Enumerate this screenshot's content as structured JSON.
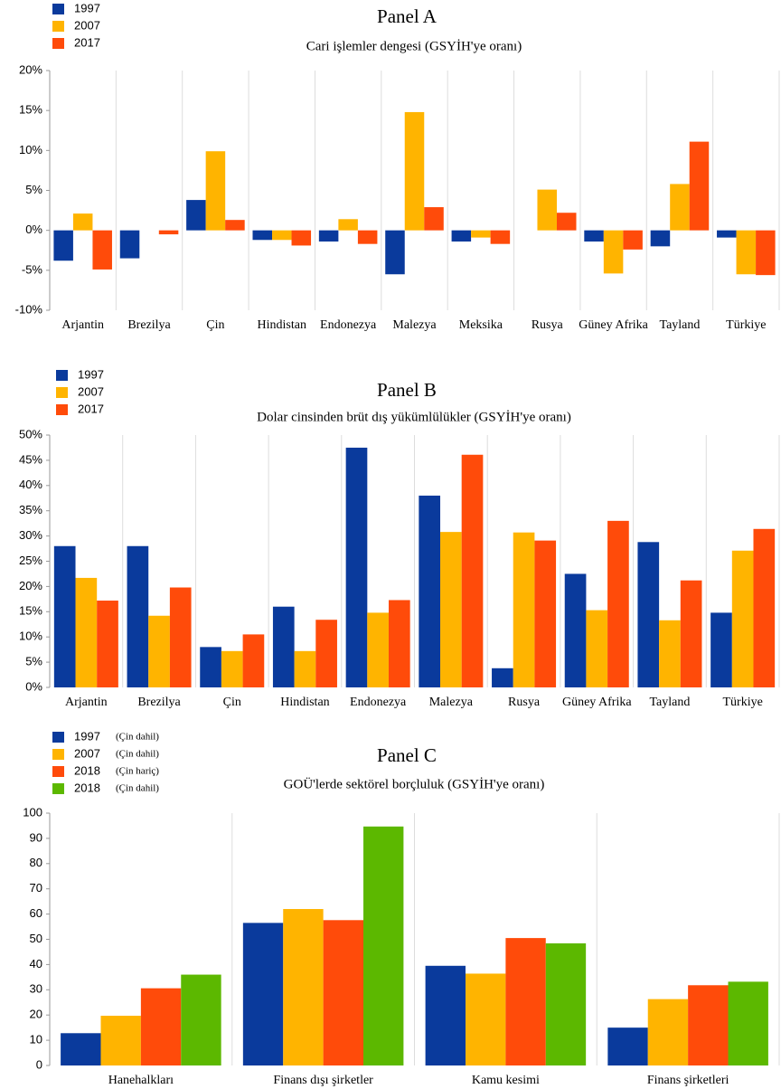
{
  "chart_data": [
    {
      "type": "bar",
      "title": "Panel A",
      "subtitle": "Cari işlemler dengesi (GSYİH'ye oranı)",
      "categories": [
        "Arjantin",
        "Brezilya",
        "Çin",
        "Hindistan",
        "Endonezya",
        "Malezya",
        "Meksika",
        "Rusya",
        "Güney Afrika",
        "Tayland",
        "Türkiye"
      ],
      "series": [
        {
          "name": "1997",
          "color": "#0a3a9c",
          "values": [
            -3.8,
            -3.5,
            3.8,
            -1.2,
            -1.4,
            -5.5,
            -1.4,
            0,
            -1.4,
            -2.0,
            -0.9
          ]
        },
        {
          "name": "2007",
          "color": "#ffb400",
          "values": [
            2.1,
            0,
            9.9,
            -1.2,
            1.4,
            14.8,
            -0.9,
            5.1,
            -5.4,
            5.8,
            -5.5
          ]
        },
        {
          "name": "2017",
          "color": "#ff4b0a",
          "values": [
            -4.9,
            -0.5,
            1.3,
            -1.9,
            -1.7,
            2.9,
            -1.7,
            2.2,
            -2.4,
            11.1,
            -5.6
          ]
        }
      ],
      "ylim": [
        -10,
        20
      ],
      "yticks": [
        {
          "value": -10,
          "label": "-10%"
        },
        {
          "value": -5,
          "label": "-5%"
        },
        {
          "value": 0,
          "label": "0%"
        },
        {
          "value": 5,
          "label": "5%"
        },
        {
          "value": 10,
          "label": "10%"
        },
        {
          "value": 15,
          "label": "15%"
        },
        {
          "value": 20,
          "label": "20%"
        }
      ],
      "legend": "top-left"
    },
    {
      "type": "bar",
      "title": "Panel B",
      "subtitle": "Dolar cinsinden brüt dış yükümlülükler (GSYİH'ye oranı)",
      "categories": [
        "Arjantin",
        "Brezilya",
        "Çin",
        "Hindistan",
        "Endonezya",
        "Malezya",
        "Rusya",
        "Güney Afrika",
        "Tayland",
        "Türkiye"
      ],
      "series": [
        {
          "name": "1997",
          "color": "#0a3a9c",
          "values": [
            28,
            28,
            8,
            16,
            47.5,
            38,
            3.8,
            22.5,
            28.8,
            14.8
          ]
        },
        {
          "name": "2007",
          "color": "#ffb400",
          "values": [
            21.7,
            14.2,
            7.2,
            7.2,
            14.8,
            30.8,
            30.7,
            15.3,
            13.3,
            27.1
          ]
        },
        {
          "name": "2017",
          "color": "#ff4b0a",
          "values": [
            17.2,
            19.8,
            10.5,
            13.4,
            17.3,
            46.1,
            29.1,
            33,
            21.2,
            31.4
          ]
        }
      ],
      "ylim": [
        0,
        50
      ],
      "yticks": [
        {
          "value": 0,
          "label": "0%"
        },
        {
          "value": 5,
          "label": "5%"
        },
        {
          "value": 10,
          "label": "10%"
        },
        {
          "value": 15,
          "label": "15%"
        },
        {
          "value": 20,
          "label": "20%"
        },
        {
          "value": 25,
          "label": "25%"
        },
        {
          "value": 30,
          "label": "30%"
        },
        {
          "value": 35,
          "label": "35%"
        },
        {
          "value": 40,
          "label": "40%"
        },
        {
          "value": 45,
          "label": "45%"
        },
        {
          "value": 50,
          "label": "50%"
        }
      ],
      "legend": "top-left"
    },
    {
      "type": "bar",
      "title": "Panel C",
      "subtitle": "GOÜ'lerde sektörel borçluluk (GSYİH'ye oranı)",
      "categories": [
        "Hanehalkları",
        "Finans dışı şirketler",
        "Kamu kesimi",
        "Finans şirketleri"
      ],
      "series": [
        {
          "name": "1997",
          "qualifier": "(Çin dahil)",
          "color": "#0a3a9c",
          "values": [
            12.8,
            56.5,
            39.5,
            15
          ]
        },
        {
          "name": "2007",
          "qualifier": "(Çin dahil)",
          "color": "#ffb400",
          "values": [
            19.7,
            62,
            36.4,
            26.3
          ]
        },
        {
          "name": "2018",
          "qualifier": "(Çin hariç)",
          "color": "#ff4b0a",
          "values": [
            30.6,
            57.6,
            50.5,
            31.8
          ]
        },
        {
          "name": "2018",
          "qualifier": "(Çin dahil)",
          "color": "#5cb800",
          "values": [
            36,
            94.7,
            48.4,
            33.2
          ]
        }
      ],
      "ylim": [
        0,
        100
      ],
      "yticks": [
        0,
        10,
        20,
        30,
        40,
        50,
        60,
        70,
        80,
        90,
        100
      ],
      "legend": "top-left"
    }
  ]
}
